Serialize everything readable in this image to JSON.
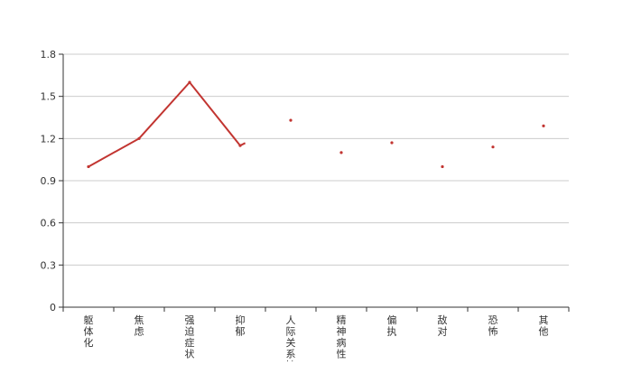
{
  "chart_data": {
    "type": "line",
    "title": "",
    "xlabel": "",
    "ylabel": "",
    "categories": [
      "躯体化",
      "焦虑",
      "强迫症状",
      "抑郁",
      "人际关系敏感",
      "精神病性",
      "偏执",
      "敌对",
      "恐怖",
      "其他"
    ],
    "values": [
      1.0,
      1.2,
      1.6,
      1.15,
      1.33,
      1.1,
      1.17,
      1.0,
      1.14,
      1.29
    ],
    "ylim": [
      0,
      1.8
    ],
    "yticks": [
      "0",
      "0.3",
      "0.6",
      "0.9",
      "1.2",
      "1.5",
      "1.8"
    ],
    "grid": true,
    "color": "#c23531"
  }
}
